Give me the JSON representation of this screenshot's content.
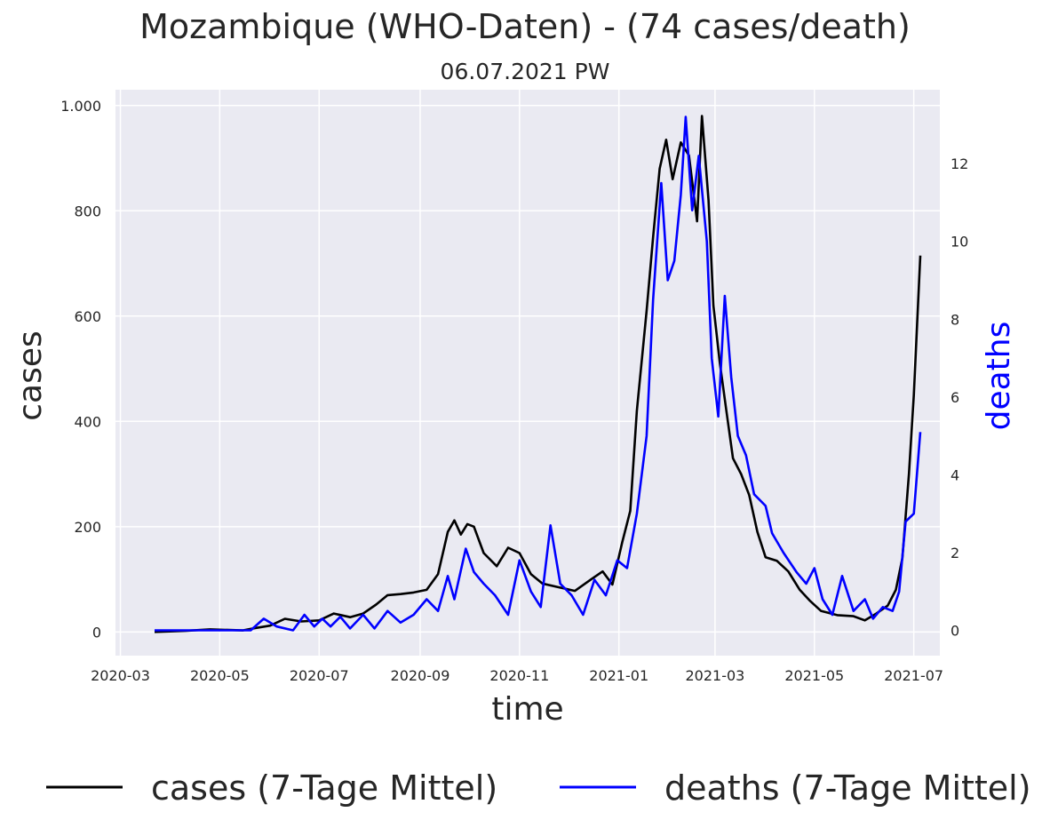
{
  "chart_data": {
    "type": "line",
    "title": "Mozambique (WHO-Daten) - (74 cases/death)",
    "subtitle": "06.07.2021 PW",
    "xlabel": "time",
    "ylabel_left": "cases",
    "ylabel_right": "deaths",
    "x_ticks": [
      "2020-03",
      "2020-05",
      "2020-07",
      "2020-09",
      "2020-11",
      "2021-01",
      "2021-03",
      "2021-05",
      "2021-07"
    ],
    "y_left_ticks": [
      0,
      200,
      400,
      600,
      800,
      1000
    ],
    "y_left_tick_labels": [
      "0",
      "200",
      "400",
      "600",
      "800",
      "1.000"
    ],
    "y_right_ticks": [
      0,
      2,
      4,
      6,
      8,
      10,
      12
    ],
    "y_right_tick_labels": [
      "0",
      "2",
      "4",
      "6",
      "8",
      "10",
      "12"
    ],
    "ylim_left": [
      -45,
      1030
    ],
    "ylim_right": [
      -0.65,
      13.9
    ],
    "xlim": [
      "2020-02-27",
      "2021-07-17"
    ],
    "grid": true,
    "legend_position": "bottom",
    "series": [
      {
        "name": "cases (7-Tage Mittel)",
        "axis": "left",
        "color": "#000000",
        "points": [
          [
            "2020-03-22",
            0
          ],
          [
            "2020-04-10",
            2
          ],
          [
            "2020-04-25",
            5
          ],
          [
            "2020-05-15",
            3
          ],
          [
            "2020-05-22",
            7
          ],
          [
            "2020-06-01",
            12
          ],
          [
            "2020-06-10",
            25
          ],
          [
            "2020-06-20",
            20
          ],
          [
            "2020-07-01",
            22
          ],
          [
            "2020-07-10",
            35
          ],
          [
            "2020-07-20",
            28
          ],
          [
            "2020-07-28",
            35
          ],
          [
            "2020-08-05",
            52
          ],
          [
            "2020-08-12",
            70
          ],
          [
            "2020-08-20",
            72
          ],
          [
            "2020-08-28",
            75
          ],
          [
            "2020-09-05",
            80
          ],
          [
            "2020-09-12",
            110
          ],
          [
            "2020-09-18",
            190
          ],
          [
            "2020-09-22",
            212
          ],
          [
            "2020-09-26",
            185
          ],
          [
            "2020-09-30",
            205
          ],
          [
            "2020-10-04",
            200
          ],
          [
            "2020-10-10",
            150
          ],
          [
            "2020-10-18",
            125
          ],
          [
            "2020-10-25",
            160
          ],
          [
            "2020-11-01",
            150
          ],
          [
            "2020-11-08",
            110
          ],
          [
            "2020-11-15",
            92
          ],
          [
            "2020-11-25",
            85
          ],
          [
            "2020-12-05",
            78
          ],
          [
            "2020-12-15",
            100
          ],
          [
            "2020-12-22",
            115
          ],
          [
            "2020-12-28",
            90
          ],
          [
            "2021-01-03",
            170
          ],
          [
            "2021-01-08",
            230
          ],
          [
            "2021-01-12",
            420
          ],
          [
            "2021-01-18",
            610
          ],
          [
            "2021-01-22",
            750
          ],
          [
            "2021-01-26",
            880
          ],
          [
            "2021-01-30",
            935
          ],
          [
            "2021-02-03",
            860
          ],
          [
            "2021-02-08",
            930
          ],
          [
            "2021-02-13",
            905
          ],
          [
            "2021-02-18",
            780
          ],
          [
            "2021-02-21",
            980
          ],
          [
            "2021-02-25",
            820
          ],
          [
            "2021-02-28",
            620
          ],
          [
            "2021-03-04",
            510
          ],
          [
            "2021-03-08",
            420
          ],
          [
            "2021-03-12",
            330
          ],
          [
            "2021-03-17",
            300
          ],
          [
            "2021-03-22",
            260
          ],
          [
            "2021-03-27",
            190
          ],
          [
            "2021-04-01",
            142
          ],
          [
            "2021-04-08",
            135
          ],
          [
            "2021-04-15",
            115
          ],
          [
            "2021-04-22",
            80
          ],
          [
            "2021-04-28",
            60
          ],
          [
            "2021-05-05",
            40
          ],
          [
            "2021-05-15",
            32
          ],
          [
            "2021-05-25",
            30
          ],
          [
            "2021-06-01",
            22
          ],
          [
            "2021-06-08",
            35
          ],
          [
            "2021-06-15",
            50
          ],
          [
            "2021-06-20",
            80
          ],
          [
            "2021-06-24",
            140
          ],
          [
            "2021-06-28",
            300
          ],
          [
            "2021-07-01",
            450
          ],
          [
            "2021-07-05",
            715
          ]
        ]
      },
      {
        "name": "deaths (7-Tage Mittel)",
        "axis": "right",
        "color": "#0000ff",
        "points": [
          [
            "2020-03-22",
            0
          ],
          [
            "2020-04-20",
            0
          ],
          [
            "2020-05-20",
            0
          ],
          [
            "2020-05-28",
            0.3
          ],
          [
            "2020-06-05",
            0.1
          ],
          [
            "2020-06-15",
            0
          ],
          [
            "2020-06-22",
            0.4
          ],
          [
            "2020-06-28",
            0.1
          ],
          [
            "2020-07-03",
            0.3
          ],
          [
            "2020-07-08",
            0.1
          ],
          [
            "2020-07-14",
            0.35
          ],
          [
            "2020-07-20",
            0.05
          ],
          [
            "2020-07-28",
            0.4
          ],
          [
            "2020-08-04",
            0.05
          ],
          [
            "2020-08-12",
            0.5
          ],
          [
            "2020-08-20",
            0.2
          ],
          [
            "2020-08-28",
            0.4
          ],
          [
            "2020-09-05",
            0.8
          ],
          [
            "2020-09-12",
            0.5
          ],
          [
            "2020-09-18",
            1.4
          ],
          [
            "2020-09-22",
            0.8
          ],
          [
            "2020-09-29",
            2.1
          ],
          [
            "2020-10-04",
            1.5
          ],
          [
            "2020-10-10",
            1.2
          ],
          [
            "2020-10-17",
            0.9
          ],
          [
            "2020-10-25",
            0.4
          ],
          [
            "2020-11-01",
            1.8
          ],
          [
            "2020-11-08",
            1.0
          ],
          [
            "2020-11-14",
            0.6
          ],
          [
            "2020-11-20",
            2.7
          ],
          [
            "2020-11-26",
            1.2
          ],
          [
            "2020-12-03",
            0.9
          ],
          [
            "2020-12-10",
            0.4
          ],
          [
            "2020-12-17",
            1.3
          ],
          [
            "2020-12-24",
            0.9
          ],
          [
            "2020-12-31",
            1.8
          ],
          [
            "2021-01-06",
            1.6
          ],
          [
            "2021-01-12",
            3.0
          ],
          [
            "2021-01-18",
            5.0
          ],
          [
            "2021-01-22",
            8.5
          ],
          [
            "2021-01-27",
            11.5
          ],
          [
            "2021-01-31",
            9.0
          ],
          [
            "2021-02-04",
            9.5
          ],
          [
            "2021-02-08",
            11.2
          ],
          [
            "2021-02-11",
            13.2
          ],
          [
            "2021-02-15",
            10.8
          ],
          [
            "2021-02-19",
            12.2
          ],
          [
            "2021-02-24",
            10.0
          ],
          [
            "2021-02-27",
            7.0
          ],
          [
            "2021-03-03",
            5.5
          ],
          [
            "2021-03-07",
            8.6
          ],
          [
            "2021-03-11",
            6.5
          ],
          [
            "2021-03-15",
            5.0
          ],
          [
            "2021-03-20",
            4.5
          ],
          [
            "2021-03-25",
            3.5
          ],
          [
            "2021-04-01",
            3.2
          ],
          [
            "2021-04-05",
            2.5
          ],
          [
            "2021-04-12",
            2.0
          ],
          [
            "2021-04-20",
            1.5
          ],
          [
            "2021-04-26",
            1.2
          ],
          [
            "2021-05-01",
            1.6
          ],
          [
            "2021-05-06",
            0.8
          ],
          [
            "2021-05-12",
            0.4
          ],
          [
            "2021-05-18",
            1.4
          ],
          [
            "2021-05-25",
            0.5
          ],
          [
            "2021-06-01",
            0.8
          ],
          [
            "2021-06-06",
            0.3
          ],
          [
            "2021-06-12",
            0.6
          ],
          [
            "2021-06-18",
            0.5
          ],
          [
            "2021-06-22",
            1.0
          ],
          [
            "2021-06-26",
            2.8
          ],
          [
            "2021-07-01",
            3.0
          ],
          [
            "2021-07-05",
            5.1
          ]
        ]
      }
    ]
  }
}
